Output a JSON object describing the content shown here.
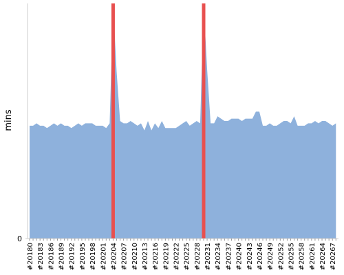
{
  "chart_data": {
    "type": "area",
    "y_label": "mins",
    "categories": [
      "#20180",
      null,
      null,
      "#20183",
      null,
      null,
      "#20186",
      null,
      null,
      "#20189",
      null,
      null,
      "#20192",
      null,
      null,
      "#20195",
      null,
      null,
      "#20198",
      null,
      null,
      "#20201",
      null,
      null,
      "#20204",
      null,
      null,
      "#20207",
      null,
      null,
      "#20210",
      null,
      null,
      "#20213",
      null,
      null,
      "#20216",
      null,
      null,
      "#20219",
      null,
      null,
      "#20222",
      null,
      null,
      "#20225",
      null,
      null,
      "#20228",
      null,
      null,
      "#20231",
      null,
      null,
      "#20234",
      null,
      null,
      "#20237",
      null,
      null,
      "#20240",
      null,
      null,
      "#20243",
      null,
      null,
      "#20246",
      null,
      null,
      "#20249",
      null,
      null,
      "#20252",
      null,
      null,
      "#20255",
      null,
      null,
      "#20258",
      null,
      null,
      "#20261",
      null,
      null,
      "#20264",
      null,
      null,
      "#20267",
      null
    ],
    "values": [
      48,
      48,
      49,
      48,
      48,
      47,
      48,
      49,
      48,
      49,
      48,
      48,
      47,
      48,
      49,
      48,
      49,
      49,
      49,
      48,
      48,
      48,
      47,
      49,
      100,
      71,
      50,
      49,
      49,
      50,
      49,
      48,
      49,
      46,
      50,
      46,
      49,
      47,
      50,
      47,
      47,
      47,
      47,
      48,
      49,
      50,
      48,
      49,
      50,
      49,
      100,
      72,
      49,
      49,
      52,
      51,
      50,
      50,
      51,
      51,
      51,
      50,
      51,
      51,
      51,
      54,
      54,
      48,
      48,
      49,
      48,
      48,
      49,
      50,
      50,
      49,
      52,
      48,
      48,
      48,
      49,
      49,
      50,
      49,
      50,
      50,
      49,
      48,
      49
    ],
    "color": "#8eb1dc",
    "highlights": [
      24,
      50
    ],
    "highlight_color": "#e8504f",
    "ylim": [
      0,
      100
    ],
    "yticks": [
      0
    ]
  }
}
